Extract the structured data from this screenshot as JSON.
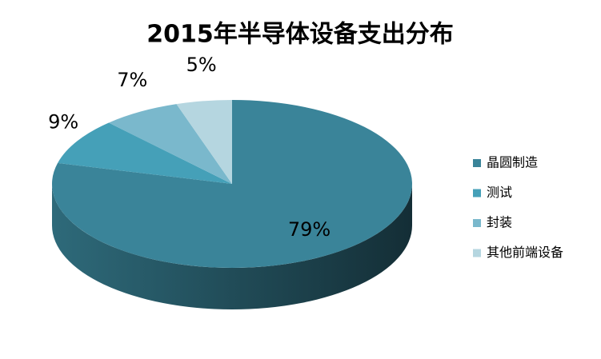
{
  "chart_data": {
    "type": "pie",
    "title": "2015年半导体设备支出分布",
    "categories": [
      "晶圆制造",
      "测试",
      "封装",
      "其他前端设备"
    ],
    "values": [
      79,
      9,
      7,
      5
    ],
    "value_labels": [
      "79%",
      "9%",
      "7%",
      "5%"
    ],
    "colors": [
      "#3a8499",
      "#45a0b8",
      "#7ab8cc",
      "#b5d6e0"
    ],
    "legend": "right"
  }
}
